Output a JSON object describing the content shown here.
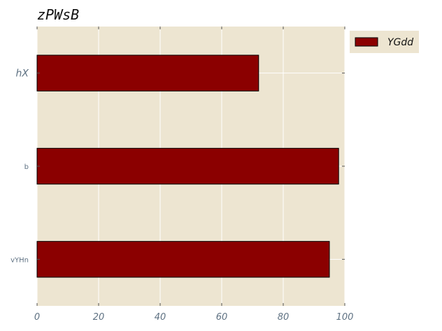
{
  "chart_data": {
    "type": "bar",
    "orientation": "horizontal",
    "title": "zPWsB",
    "xlabel": "",
    "ylabel": "",
    "categories": [
      "hX",
      "b",
      "vYHn"
    ],
    "series": [
      {
        "name": "YGdd",
        "values": [
          72,
          98,
          95
        ],
        "color": "#8b0000"
      }
    ],
    "xlim": [
      0,
      100
    ],
    "xticks": [
      0,
      20,
      40,
      60,
      80,
      100
    ],
    "grid": true,
    "legend": "top-right",
    "background": "#ede5d1"
  }
}
